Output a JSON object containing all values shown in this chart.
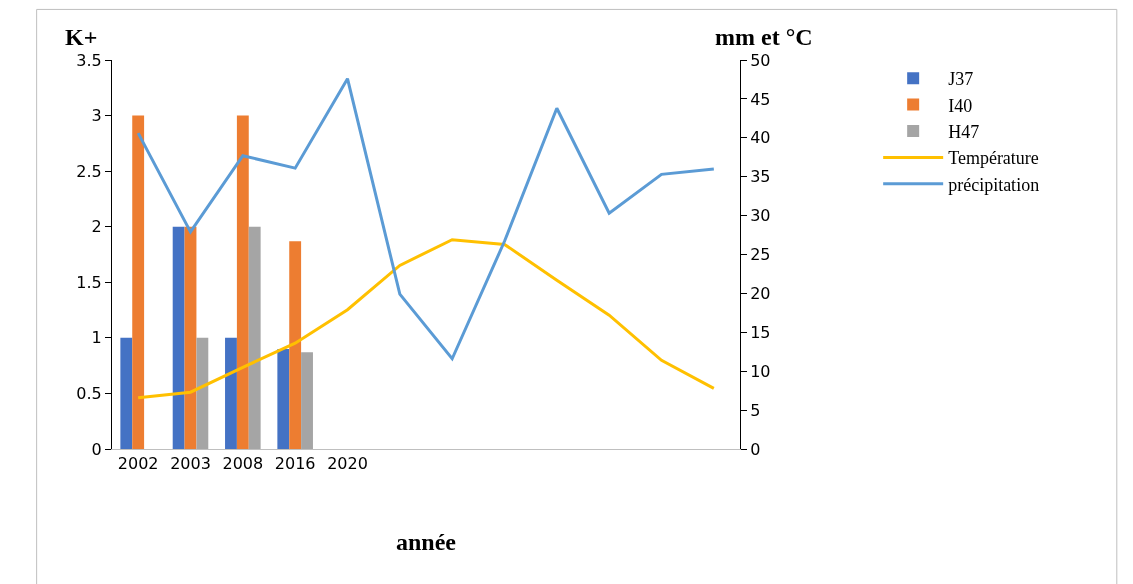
{
  "chart_data": {
    "type": "bar",
    "xlabel": "année",
    "ylabel": "K+",
    "y2label": "mm et °C",
    "categories": [
      "2002",
      "2003",
      "2008",
      "2016",
      "2020",
      null,
      null,
      null,
      null,
      null,
      null,
      null
    ],
    "series": [
      {
        "name": "J37",
        "color": "#4472c4",
        "values": [
          1,
          2,
          1,
          0.9,
          null,
          null,
          null,
          null,
          null,
          null,
          null,
          null
        ]
      },
      {
        "name": "I40",
        "color": "#ed7d31",
        "values": [
          3,
          2,
          3,
          1.87,
          null,
          null,
          null,
          null,
          null,
          null,
          null,
          null
        ]
      },
      {
        "name": "H47",
        "color": "#a5a5a5",
        "values": [
          null,
          1,
          2,
          0.87,
          null,
          null,
          null,
          null,
          null,
          null,
          null,
          null
        ]
      },
      {
        "name": "Température",
        "type": "line",
        "axis": "y2",
        "color": "#ffc000",
        "values": [
          6.6,
          7.3,
          10.5,
          13.6,
          17.9,
          23.6,
          26.9,
          26.3,
          21.7,
          17.2,
          11.4,
          7.8
        ]
      },
      {
        "name": "précipitation",
        "type": "line",
        "axis": "y2",
        "color": "#5b9bd5",
        "values": [
          40.6,
          27.9,
          37.7,
          36.1,
          47.6,
          19.9,
          11.6,
          26.7,
          43.8,
          30.3,
          35.3,
          36.0
        ]
      }
    ],
    "ylim": [
      0,
      3.5
    ],
    "yticks": [
      0,
      0.5,
      1,
      1.5,
      2,
      2.5,
      3,
      3.5
    ],
    "y2lim": [
      0,
      50
    ],
    "y2ticks": [
      0,
      5,
      10,
      15,
      20,
      25,
      30,
      35,
      40,
      45,
      50
    ],
    "grid": false,
    "legend": "top right",
    "marker": "none",
    "line_style": "solid"
  }
}
